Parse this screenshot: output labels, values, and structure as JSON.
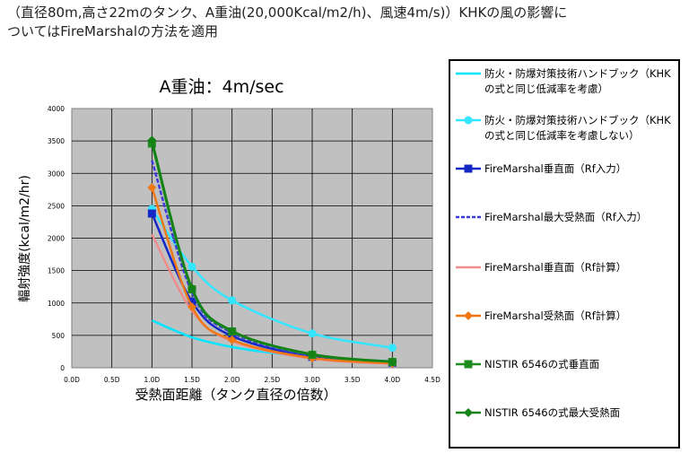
{
  "heading": {
    "line1": "（直径80m,高さ22mのタンク、A重油(20,000Kcal/m2/h)、風速4m/s)）KHKの風の影響に",
    "line2": "ついてはFireMarshalの方法を適用"
  },
  "chart_data": {
    "type": "line",
    "title": "A重油：4m/sec",
    "xlabel": "受熱面距離（タンク直径の倍数）",
    "ylabel": "輻射強度(kcal/m2/hr)",
    "xlim": [
      0.0,
      4.5
    ],
    "ylim": [
      0,
      4000
    ],
    "xticks": [
      "0.0D",
      "0.5D",
      "1.0D",
      "1.5D",
      "2.0D",
      "2.5D",
      "3.0D",
      "3.5D",
      "4.0D",
      "4.5D"
    ],
    "yticks": [
      "0",
      "500",
      "1000",
      "1500",
      "2000",
      "2500",
      "3000",
      "3500",
      "4000"
    ],
    "grid": true,
    "legend_position": "right",
    "series": [
      {
        "name": "防火・防爆対策技術ハンドブック（KHKの式と同じ低減率を考慮）",
        "color": "#00e5ff",
        "marker": "none",
        "x": [
          1.0,
          1.5,
          2.0,
          2.5,
          3.0,
          3.5,
          4.0
        ],
        "y": [
          730,
          470,
          320,
          230,
          170,
          130,
          100
        ]
      },
      {
        "name": "防火・防爆対策技術ハンドブック（KHKの式と同じ低減率を考慮しない）",
        "color": "#33e6ff",
        "marker": "circle",
        "x": [
          1.0,
          1.5,
          2.0,
          3.0,
          4.0
        ],
        "y": [
          2450,
          1560,
          1040,
          530,
          310
        ]
      },
      {
        "name": "FireMarshal垂直面（Rf入力）",
        "color": "#1428c8",
        "marker": "square",
        "x": [
          1.0,
          1.5,
          2.0,
          3.0,
          4.0
        ],
        "y": [
          2380,
          1020,
          490,
          170,
          80
        ]
      },
      {
        "name": "FireMarshal最大受熱面（Rf入力）",
        "color": "#3c3cdc",
        "marker": "none",
        "dash": true,
        "x": [
          1.0,
          1.5,
          2.0,
          3.0,
          4.0
        ],
        "y": [
          3200,
          1160,
          540,
          180,
          80
        ]
      },
      {
        "name": "FireMarshal垂直面（Rf計算）",
        "color": "#f08c8c",
        "marker": "none",
        "x": [
          1.0,
          1.5,
          2.0,
          3.0,
          4.0
        ],
        "y": [
          2060,
          880,
          410,
          140,
          60
        ]
      },
      {
        "name": "FireMarshal受熱面（Rf計算）",
        "color": "#f07814",
        "marker": "diamond",
        "x": [
          1.0,
          1.5,
          2.0,
          3.0,
          4.0
        ],
        "y": [
          2780,
          940,
          430,
          150,
          70
        ]
      },
      {
        "name": "NISTIR 6546の式垂直面",
        "color": "#1e8c1e",
        "marker": "square",
        "x": [
          1.0,
          1.5,
          2.0,
          3.0,
          4.0
        ],
        "y": [
          3460,
          1210,
          560,
          200,
          90
        ]
      },
      {
        "name": "NISTIR 6546の式最大受熱面",
        "color": "#148214",
        "marker": "diamond",
        "x": [
          1.0,
          1.5,
          2.0,
          3.0,
          4.0
        ],
        "y": [
          3510,
          1230,
          570,
          210,
          95
        ]
      }
    ]
  }
}
